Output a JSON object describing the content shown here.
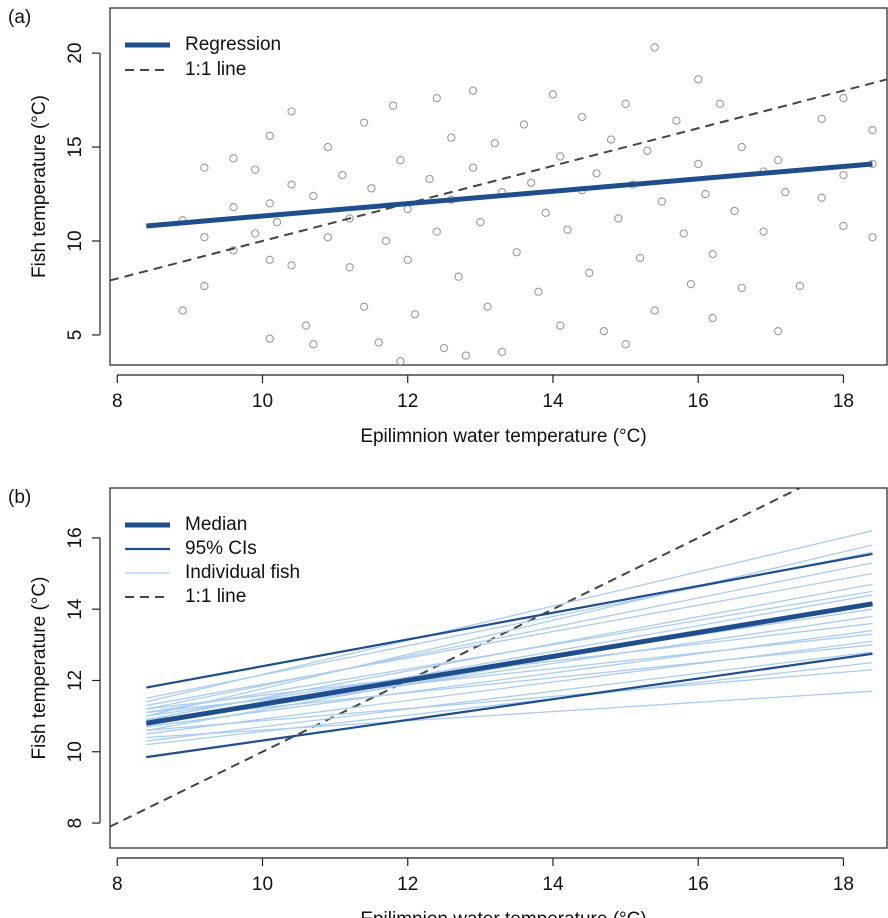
{
  "chart_data": [
    {
      "type": "scatter",
      "label": "(a)",
      "xlabel": "Epilimnion water temperature (°C)",
      "ylabel": "Fish temperature (°C)",
      "xlim": [
        7.9,
        18.6
      ],
      "ylim": [
        3.4,
        22.4
      ],
      "xticks": [
        8,
        10,
        12,
        14,
        16,
        18
      ],
      "yticks": [
        5,
        10,
        15,
        20
      ],
      "legend": "top-left",
      "points": {
        "color": "#9a9a9a",
        "x": [
          8.9,
          8.9,
          9.2,
          9.2,
          9.2,
          9.6,
          9.6,
          9.6,
          9.9,
          9.9,
          10.1,
          10.1,
          10.1,
          10.1,
          10.2,
          10.4,
          10.4,
          10.4,
          10.6,
          10.7,
          10.7,
          10.9,
          10.9,
          11.1,
          11.2,
          11.2,
          11.4,
          11.4,
          11.5,
          11.6,
          11.7,
          11.8,
          11.9,
          11.9,
          12,
          12,
          12.1,
          12.3,
          12.4,
          12.4,
          12.5,
          12.6,
          12.6,
          12.7,
          12.8,
          12.9,
          12.9,
          13,
          13.1,
          13.2,
          13.3,
          13.3,
          13.5,
          13.6,
          13.7,
          13.8,
          13.9,
          14,
          14.1,
          14.1,
          14.2,
          14.4,
          14.4,
          14.5,
          14.6,
          14.7,
          14.8,
          14.9,
          15,
          15,
          15.1,
          15.2,
          15.3,
          15.4,
          15.4,
          15.5,
          15.7,
          15.8,
          15.9,
          16,
          16,
          16.1,
          16.2,
          16.2,
          16.3,
          16.5,
          16.6,
          16.6,
          16.9,
          16.9,
          17.1,
          17.1,
          17.2,
          17.4,
          17.7,
          17.7,
          18,
          18,
          18,
          18.4,
          18.4,
          18.4
        ],
        "y": [
          6.3,
          11.1,
          13.9,
          7.6,
          10.2,
          14.4,
          9.5,
          11.8,
          13.8,
          10.4,
          4.8,
          15.6,
          12,
          9,
          11,
          16.9,
          13,
          8.7,
          5.5,
          12.4,
          4.5,
          15,
          10.2,
          13.5,
          11.2,
          8.6,
          16.3,
          6.5,
          12.8,
          4.6,
          10,
          17.2,
          14.3,
          3.6,
          11.7,
          9,
          6.1,
          13.3,
          17.6,
          10.5,
          4.3,
          15.5,
          12.2,
          8.1,
          3.9,
          13.9,
          18,
          11,
          6.5,
          15.2,
          12.6,
          4.1,
          9.4,
          16.2,
          13.1,
          7.3,
          11.5,
          17.8,
          14.5,
          5.5,
          10.6,
          12.7,
          16.6,
          8.3,
          13.6,
          5.2,
          15.4,
          11.2,
          4.5,
          17.3,
          13,
          9.1,
          14.8,
          20.3,
          6.3,
          12.1,
          16.4,
          10.4,
          7.7,
          18.6,
          14.1,
          12.5,
          9.3,
          5.9,
          17.3,
          11.6,
          15,
          7.5,
          13.7,
          10.5,
          14.3,
          5.2,
          12.6,
          7.6,
          16.5,
          12.3,
          17.6,
          13.5,
          10.8,
          14.1,
          10.2,
          15.9
        ]
      },
      "series": [
        {
          "name": "Regression",
          "color": "#1f4e8c",
          "width": 5,
          "dash": false,
          "x": [
            8.4,
            18.4
          ],
          "values": [
            10.8,
            14.1
          ]
        },
        {
          "name": "1:1 line",
          "color": "#444444",
          "width": 2,
          "dash": true,
          "x": [
            7.9,
            18.6
          ],
          "values": [
            7.9,
            18.6
          ]
        }
      ]
    },
    {
      "type": "line",
      "label": "(b)",
      "xlabel": "Epilimnion water temperature (°C)",
      "ylabel": "Fish temperature (°C)",
      "xlim": [
        7.9,
        18.6
      ],
      "ylim": [
        7.3,
        17.4
      ],
      "xticks": [
        8,
        10,
        12,
        14,
        16,
        18
      ],
      "yticks": [
        8,
        10,
        12,
        14,
        16
      ],
      "legend": "top-left",
      "series": [
        {
          "name": "Median",
          "color": "#1f4e8c",
          "width": 5,
          "dash": false,
          "x": [
            8.4,
            18.4
          ],
          "values": [
            10.8,
            14.15
          ]
        },
        {
          "name": "95% CIs",
          "color": "#1f4e8c",
          "width": 2.2,
          "dash": false,
          "x": [
            8.4,
            18.4
          ],
          "groups": [
            [
              11.8,
              15.55
            ],
            [
              9.85,
              12.75
            ]
          ]
        },
        {
          "name": "Individual fish",
          "color": "#a9cdf2",
          "width": 1.3,
          "dash": false,
          "x": [
            8.4,
            18.4
          ],
          "groups": [
            [
              10.4,
              11.7
            ],
            [
              10.6,
              12.3
            ],
            [
              10.9,
              13.0
            ],
            [
              11.2,
              13.6
            ],
            [
              10.7,
              13.4
            ],
            [
              11.0,
              14.0
            ],
            [
              10.5,
              13.1
            ],
            [
              10.8,
              13.8
            ],
            [
              11.1,
              14.5
            ],
            [
              10.6,
              14.2
            ],
            [
              11.3,
              15.0
            ],
            [
              10.9,
              14.7
            ],
            [
              11.2,
              15.3
            ],
            [
              11.0,
              15.8
            ],
            [
              11.4,
              16.2
            ],
            [
              10.3,
              12.8
            ],
            [
              10.8,
              14.4
            ],
            [
              11.5,
              15.6
            ],
            [
              10.2,
              12.5
            ],
            [
              11.1,
              13.3
            ]
          ]
        },
        {
          "name": "1:1 line",
          "color": "#444444",
          "width": 2,
          "dash": true,
          "x": [
            7.9,
            18.6
          ],
          "values": [
            7.9,
            18.6
          ]
        }
      ]
    }
  ]
}
